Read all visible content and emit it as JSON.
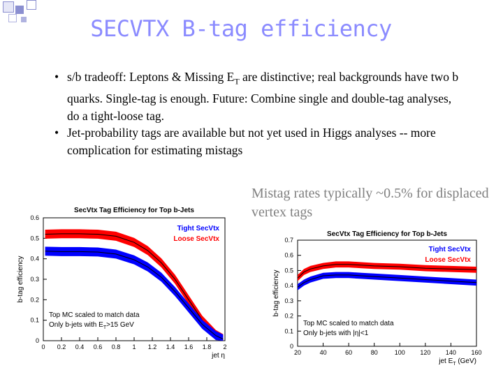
{
  "slide": {
    "title": "SECVTX B-tag efficiency",
    "bullets": [
      {
        "pre": "s/b tradeoff:  Leptons & Missing E",
        "sub": "T",
        "post": " are distinctive; real backgrounds have two b quarks.  Single-tag is enough. Future:  Combine single and double-tag analyses, do a tight-loose tag."
      },
      {
        "pre": "Jet-probability tags are available but not yet used in Higgs analyses -- more complication for estimating  mistags",
        "sub": "",
        "post": ""
      }
    ],
    "bullet_glyph": "•",
    "mistag_note": "Mistag rates typically ~0.5% for displaced vertex tags"
  },
  "colors": {
    "title": "#7f7fff",
    "tight": "#ff0000",
    "loose": "#0000ff",
    "deco": "#8b8fd0"
  },
  "chart_data": [
    {
      "type": "area",
      "title": "SecVtx Tag Efficiency for Top b-Jets",
      "xlabel": "jet η",
      "ylabel": "b-tag efficiency",
      "xlim": [
        0,
        2
      ],
      "ylim": [
        0,
        0.6
      ],
      "xticks": [
        "0",
        "0.2",
        "0.4",
        "0.6",
        "0.8",
        "1",
        "1.2",
        "1.4",
        "1.6",
        "1.8",
        "2"
      ],
      "yticks": [
        "0",
        "0.1",
        "0.2",
        "0.3",
        "0.4",
        "0.5",
        "0.6"
      ],
      "legend": [
        "Tight SecVtx",
        "Loose SecVtx"
      ],
      "annotations": [
        "Top MC scaled to match data",
        "Only b-jets with E",
        "T",
        ">15 GeV"
      ],
      "x": [
        0.02,
        0.2,
        0.4,
        0.6,
        0.8,
        1.0,
        1.15,
        1.3,
        1.45,
        1.6,
        1.75,
        1.9,
        1.98
      ],
      "series": [
        {
          "name": "Tight SecVtx",
          "center": [
            0.437,
            0.435,
            0.435,
            0.433,
            0.423,
            0.395,
            0.36,
            0.31,
            0.24,
            0.16,
            0.08,
            0.025,
            0.008
          ],
          "halfwidth": 0.022
        },
        {
          "name": "Loose SecVtx",
          "center": [
            0.52,
            0.522,
            0.522,
            0.52,
            0.51,
            0.48,
            0.44,
            0.38,
            0.3,
            0.2,
            0.1,
            0.03,
            0.01
          ],
          "halfwidth": 0.022
        }
      ]
    },
    {
      "type": "area",
      "title": "SecVtx Tag Efficiency for Top b-Jets",
      "xlabel": "jet E",
      "xlabel_sub": "T",
      "xlabel_unit": " (GeV)",
      "ylabel": "b-tag efficiency",
      "xlim": [
        20,
        160
      ],
      "ylim": [
        0,
        0.7
      ],
      "xticks": [
        "20",
        "40",
        "60",
        "80",
        "100",
        "120",
        "140",
        "160"
      ],
      "yticks": [
        "0",
        "0.1",
        "0.2",
        "0.3",
        "0.4",
        "0.5",
        "0.6",
        "0.7"
      ],
      "legend": [
        "Tight SecVtx",
        "Loose SecVtx"
      ],
      "annotations": [
        "Top MC scaled to match data",
        "Only b-jets with |η|<1"
      ],
      "x": [
        20,
        25,
        30,
        40,
        50,
        60,
        70,
        80,
        100,
        120,
        140,
        160
      ],
      "series": [
        {
          "name": "Tight SecVtx",
          "center": [
            0.39,
            0.42,
            0.44,
            0.465,
            0.47,
            0.47,
            0.465,
            0.46,
            0.45,
            0.44,
            0.43,
            0.42
          ],
          "halfwidth": 0.02
        },
        {
          "name": "Loose SecVtx",
          "center": [
            0.45,
            0.49,
            0.51,
            0.53,
            0.54,
            0.54,
            0.535,
            0.53,
            0.525,
            0.515,
            0.51,
            0.505
          ],
          "halfwidth": 0.02
        }
      ]
    }
  ]
}
